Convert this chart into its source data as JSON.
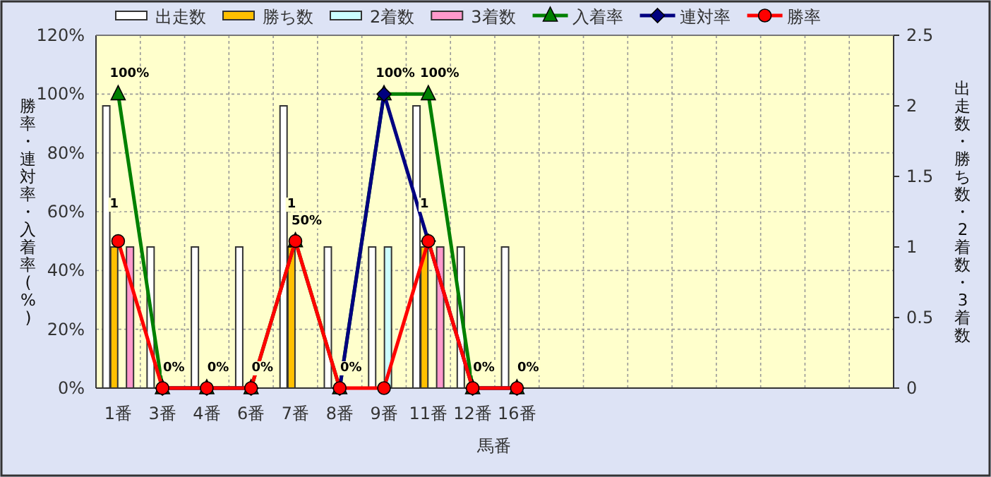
{
  "chart_data": {
    "type": "bar",
    "xlabel": "馬番",
    "ylabel": "勝率・連対率・入着率(%)",
    "y2label": "出走数・勝ち数・2着数・3着数",
    "categories": [
      "1番",
      "3番",
      "4番",
      "6番",
      "7番",
      "8番",
      "9番",
      "11番",
      "12番",
      "16番",
      null,
      null,
      null,
      null,
      null,
      null,
      null,
      null
    ],
    "series": [
      {
        "name": "出走数",
        "axis": "y2",
        "color": "#ffffff",
        "values": [
          2,
          1,
          1,
          1,
          2,
          1,
          1,
          2,
          1,
          1,
          null,
          null,
          null,
          null,
          null,
          null,
          null,
          null
        ]
      },
      {
        "name": "勝ち数",
        "axis": "y2",
        "color": "#ffc000",
        "values": [
          1,
          0,
          0,
          0,
          1,
          0,
          0,
          1,
          0,
          0,
          null,
          null,
          null,
          null,
          null,
          null,
          null,
          null
        ],
        "value_labels": [
          "1",
          null,
          null,
          null,
          "1",
          null,
          null,
          "1",
          null,
          null,
          null,
          null,
          null,
          null,
          null,
          null,
          null,
          null
        ]
      },
      {
        "name": "2着数",
        "axis": "y2",
        "color": "#ccffff",
        "values": [
          0,
          0,
          0,
          0,
          0,
          0,
          1,
          0,
          0,
          0,
          null,
          null,
          null,
          null,
          null,
          null,
          null,
          null
        ]
      },
      {
        "name": "3着数",
        "axis": "y2",
        "color": "#ff99cc",
        "values": [
          1,
          0,
          0,
          0,
          0,
          0,
          0,
          1,
          0,
          0,
          null,
          null,
          null,
          null,
          null,
          null,
          null,
          null
        ]
      },
      {
        "name": "入着率",
        "type": "line",
        "color": "#008000",
        "marker": "triangle",
        "values": [
          100,
          0,
          0,
          0,
          50,
          0,
          100,
          100,
          0,
          0,
          null,
          null,
          null,
          null,
          null,
          null,
          null,
          null
        ],
        "value_labels": [
          "100%",
          "0%",
          "0%",
          "0%",
          "50%",
          "0%",
          "100%",
          "100%",
          "0%",
          "0%",
          null,
          null,
          null,
          null,
          null,
          null,
          null,
          null
        ]
      },
      {
        "name": "連対率",
        "type": "line",
        "color": "#000080",
        "marker": "diamond",
        "values": [
          null,
          0,
          0,
          0,
          null,
          0,
          100,
          50,
          0,
          0,
          null,
          null,
          null,
          null,
          null,
          null,
          null,
          null
        ]
      },
      {
        "name": "勝率",
        "type": "line",
        "color": "#ff0000",
        "marker": "circle",
        "values": [
          50,
          0,
          0,
          0,
          50,
          0,
          0,
          50,
          0,
          0,
          null,
          null,
          null,
          null,
          null,
          null,
          null,
          null
        ]
      }
    ],
    "ylim": [
      0,
      120
    ],
    "yticks": [
      {
        "value": 0,
        "label": "0%"
      },
      {
        "value": 20,
        "label": "20%"
      },
      {
        "value": 40,
        "label": "40%"
      },
      {
        "value": 60,
        "label": "60%"
      },
      {
        "value": 80,
        "label": "80%"
      },
      {
        "value": 100,
        "label": "100%"
      },
      {
        "value": 120,
        "label": "120%"
      }
    ],
    "y2lim": [
      0,
      2.5
    ],
    "y2ticks": [
      0,
      0.5,
      1,
      1.5,
      2,
      2.5
    ],
    "grid": true,
    "legend": "top"
  }
}
